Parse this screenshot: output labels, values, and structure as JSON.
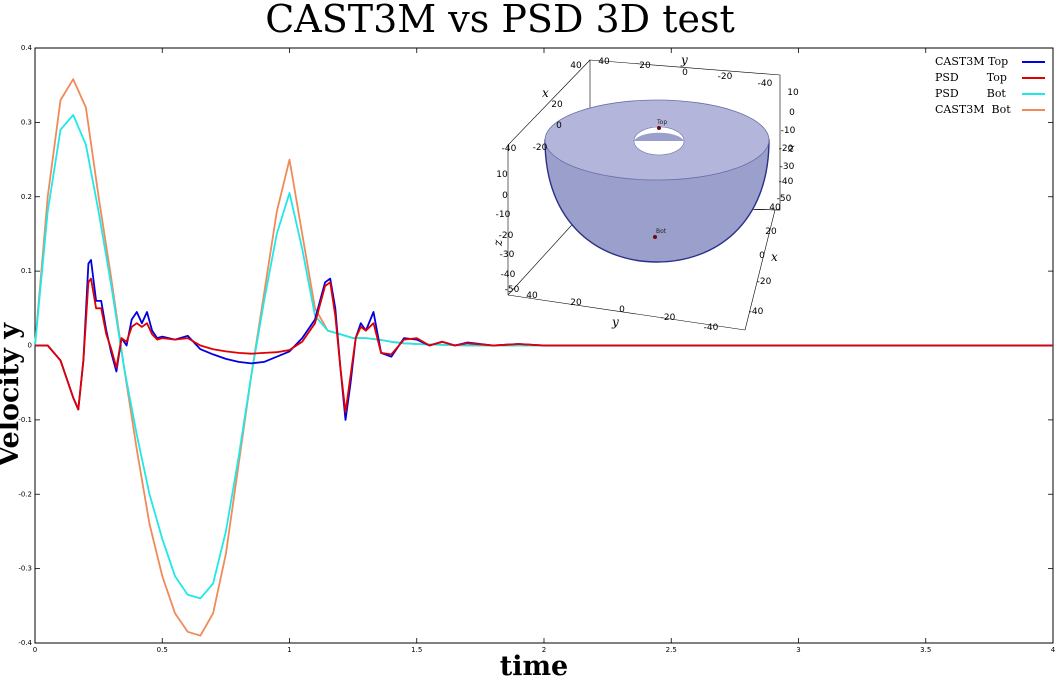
{
  "chart_data": {
    "type": "line",
    "title": "CAST3M vs PSD 3D test",
    "xlabel": "time",
    "ylabel": "Velocity  y",
    "xlim": [
      0,
      4
    ],
    "ylim": [
      -0.4,
      0.4
    ],
    "xticks": [
      "0",
      "0.5",
      "1",
      "1.5",
      "2",
      "2.5",
      "3",
      "3.5",
      "4"
    ],
    "yticks": [
      "-0.4",
      "-0.3",
      "-0.2",
      "-0.1",
      "0",
      "0.1",
      "0.2",
      "0.3",
      "0.4"
    ],
    "grid": false,
    "legend_position": "top-right",
    "series": [
      {
        "name": "CAST3M Top",
        "color": "#0000e0",
        "x": [
          0,
          0.05,
          0.1,
          0.15,
          0.17,
          0.19,
          0.21,
          0.22,
          0.24,
          0.26,
          0.28,
          0.3,
          0.32,
          0.34,
          0.36,
          0.38,
          0.4,
          0.42,
          0.44,
          0.46,
          0.48,
          0.5,
          0.55,
          0.6,
          0.65,
          0.7,
          0.75,
          0.8,
          0.85,
          0.9,
          0.95,
          1.0,
          1.05,
          1.1,
          1.12,
          1.14,
          1.16,
          1.18,
          1.2,
          1.22,
          1.24,
          1.26,
          1.28,
          1.3,
          1.33,
          1.36,
          1.4,
          1.45,
          1.5,
          1.55,
          1.6,
          1.65,
          1.7,
          1.8,
          1.9,
          2.0,
          2.2,
          2.5,
          3.0,
          3.5,
          4.0
        ],
        "values": [
          0,
          0.0,
          -0.02,
          -0.07,
          -0.086,
          -0.02,
          0.11,
          0.115,
          0.06,
          0.06,
          0.02,
          -0.01,
          -0.035,
          0.01,
          0.0,
          0.035,
          0.045,
          0.03,
          0.045,
          0.02,
          0.01,
          0.012,
          0.008,
          0.013,
          -0.005,
          -0.012,
          -0.018,
          -0.022,
          -0.024,
          -0.022,
          -0.015,
          -0.008,
          0.01,
          0.035,
          0.06,
          0.085,
          0.09,
          0.05,
          -0.03,
          -0.1,
          -0.05,
          0.01,
          0.03,
          0.02,
          0.045,
          -0.01,
          -0.015,
          0.01,
          0.008,
          0.0,
          0.005,
          0.0,
          0.004,
          0.0,
          0.002,
          0.0,
          0.0,
          0.0,
          0.0,
          0.0,
          0.0
        ]
      },
      {
        "name": "PSD        Top",
        "color": "#e00000",
        "x": [
          0,
          0.05,
          0.1,
          0.15,
          0.17,
          0.19,
          0.21,
          0.22,
          0.24,
          0.26,
          0.28,
          0.3,
          0.32,
          0.34,
          0.36,
          0.38,
          0.4,
          0.42,
          0.44,
          0.46,
          0.48,
          0.5,
          0.55,
          0.6,
          0.65,
          0.7,
          0.75,
          0.8,
          0.85,
          0.9,
          0.95,
          1.0,
          1.05,
          1.1,
          1.12,
          1.14,
          1.16,
          1.18,
          1.2,
          1.22,
          1.24,
          1.26,
          1.28,
          1.3,
          1.33,
          1.36,
          1.4,
          1.45,
          1.5,
          1.55,
          1.6,
          1.65,
          1.7,
          1.8,
          1.9,
          2.0,
          2.2,
          2.5,
          3.0,
          3.5,
          4.0
        ],
        "values": [
          0,
          0.0,
          -0.02,
          -0.07,
          -0.086,
          -0.02,
          0.085,
          0.09,
          0.05,
          0.05,
          0.015,
          -0.005,
          -0.03,
          0.01,
          0.005,
          0.025,
          0.03,
          0.025,
          0.03,
          0.015,
          0.008,
          0.01,
          0.008,
          0.01,
          0.0,
          -0.005,
          -0.008,
          -0.01,
          -0.011,
          -0.01,
          -0.009,
          -0.006,
          0.005,
          0.03,
          0.055,
          0.08,
          0.085,
          0.04,
          -0.03,
          -0.09,
          -0.04,
          0.01,
          0.025,
          0.02,
          0.03,
          -0.01,
          -0.012,
          0.008,
          0.01,
          0.0,
          0.005,
          0.0,
          0.003,
          0.0,
          0.002,
          0.0,
          0.0,
          0.0,
          0.0,
          0.0,
          0.0
        ]
      },
      {
        "name": "PSD        Bot",
        "color": "#20e8e8",
        "x": [
          0,
          0.05,
          0.1,
          0.15,
          0.2,
          0.25,
          0.3,
          0.35,
          0.4,
          0.45,
          0.5,
          0.55,
          0.6,
          0.65,
          0.7,
          0.75,
          0.8,
          0.85,
          0.9,
          0.95,
          1.0,
          1.05,
          1.1,
          1.15,
          1.2,
          1.25,
          1.3,
          1.35,
          1.4,
          1.45,
          1.5,
          1.6,
          1.7,
          1.8,
          2.0,
          2.5,
          3.0,
          3.5,
          4.0
        ],
        "values": [
          0,
          0.18,
          0.29,
          0.31,
          0.27,
          0.18,
          0.08,
          -0.03,
          -0.12,
          -0.2,
          -0.26,
          -0.31,
          -0.335,
          -0.34,
          -0.32,
          -0.25,
          -0.15,
          -0.04,
          0.06,
          0.15,
          0.205,
          0.13,
          0.04,
          0.02,
          0.015,
          0.01,
          0.01,
          0.008,
          0.005,
          0.003,
          0.002,
          0.001,
          0.0,
          0.0,
          0.0,
          0.0,
          0.0,
          0.0,
          0.0
        ]
      },
      {
        "name": "CAST3M  Bot",
        "color": "#f08a5a",
        "x": [
          0,
          0.05,
          0.1,
          0.15,
          0.2,
          0.25,
          0.3,
          0.35,
          0.4,
          0.45,
          0.5,
          0.55,
          0.6,
          0.65,
          0.7,
          0.75,
          0.8,
          0.85,
          0.9,
          0.95,
          1.0,
          1.05,
          1.1,
          1.15,
          1.2,
          1.25,
          1.3,
          1.35,
          1.4,
          1.45,
          1.5,
          1.6,
          1.7,
          1.8,
          2.0,
          2.5,
          3.0,
          3.5,
          4.0
        ],
        "values": [
          0,
          0.2,
          0.33,
          0.358,
          0.32,
          0.2,
          0.09,
          -0.03,
          -0.14,
          -0.24,
          -0.31,
          -0.36,
          -0.385,
          -0.39,
          -0.36,
          -0.28,
          -0.16,
          -0.04,
          0.07,
          0.18,
          0.25,
          0.15,
          0.05,
          0.02,
          0.015,
          0.01,
          0.01,
          0.008,
          0.005,
          0.003,
          0.002,
          0.001,
          0.0,
          0.0,
          0.0,
          0.0,
          0.0,
          0.0,
          0.0
        ]
      }
    ]
  },
  "inset": {
    "axis_x": "x",
    "axis_y": "y",
    "axis_z": "z",
    "marker_top": "Top",
    "marker_bot": "Bot",
    "ticks_top_y": [
      "40",
      "20",
      "0",
      "-20",
      "-40"
    ],
    "ticks_top_y_label": "y",
    "ticks_left_x": [
      "40",
      "20",
      "0",
      "-20",
      "-40"
    ],
    "ticks_left_z": [
      "10",
      "0",
      "-10",
      "-20",
      "-30",
      "-40",
      "-50"
    ],
    "ticks_right_z": [
      "10",
      "0",
      "-10",
      "-20",
      "-30",
      "-40",
      "-50"
    ],
    "ticks_right_x": [
      "40",
      "20",
      "0",
      "-20",
      "-40"
    ],
    "ticks_bottom_y": [
      "40",
      "20",
      "0",
      "-20",
      "-40"
    ]
  }
}
